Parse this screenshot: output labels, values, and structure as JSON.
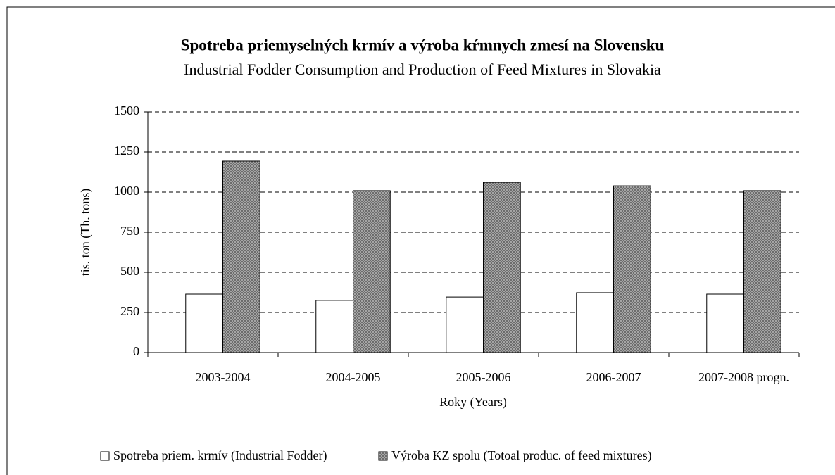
{
  "chart_data": {
    "type": "bar",
    "title": "Spotreba priemyselných krmív a výroba kŕmnych zmesí na Slovensku",
    "subtitle": "Industrial Fodder Consumption and Production of Feed Mixtures in Slovakia",
    "x_label": "Roky (Years)",
    "y_label": "tis. ton (Th. tons)",
    "categories": [
      "2003-2004",
      "2004-2005",
      "2005-2006",
      "2006-2007",
      "2007-2008 progn."
    ],
    "series": [
      {
        "name": "Spotreba priem. krmív (Industrial Fodder)",
        "color": "#ffffff",
        "values": [
          364,
          325,
          346,
          373,
          364
        ]
      },
      {
        "name": "Výroba KZ spolu (Totoal produc. of feed mixtures)",
        "color": "#9e9e9e",
        "values": [
          1193,
          1009,
          1061,
          1039,
          1009
        ]
      }
    ],
    "ylim": [
      0,
      1500
    ],
    "yticks": [
      0,
      250,
      500,
      750,
      1000,
      1250,
      1500
    ],
    "grid": true,
    "legend": "bottom"
  }
}
